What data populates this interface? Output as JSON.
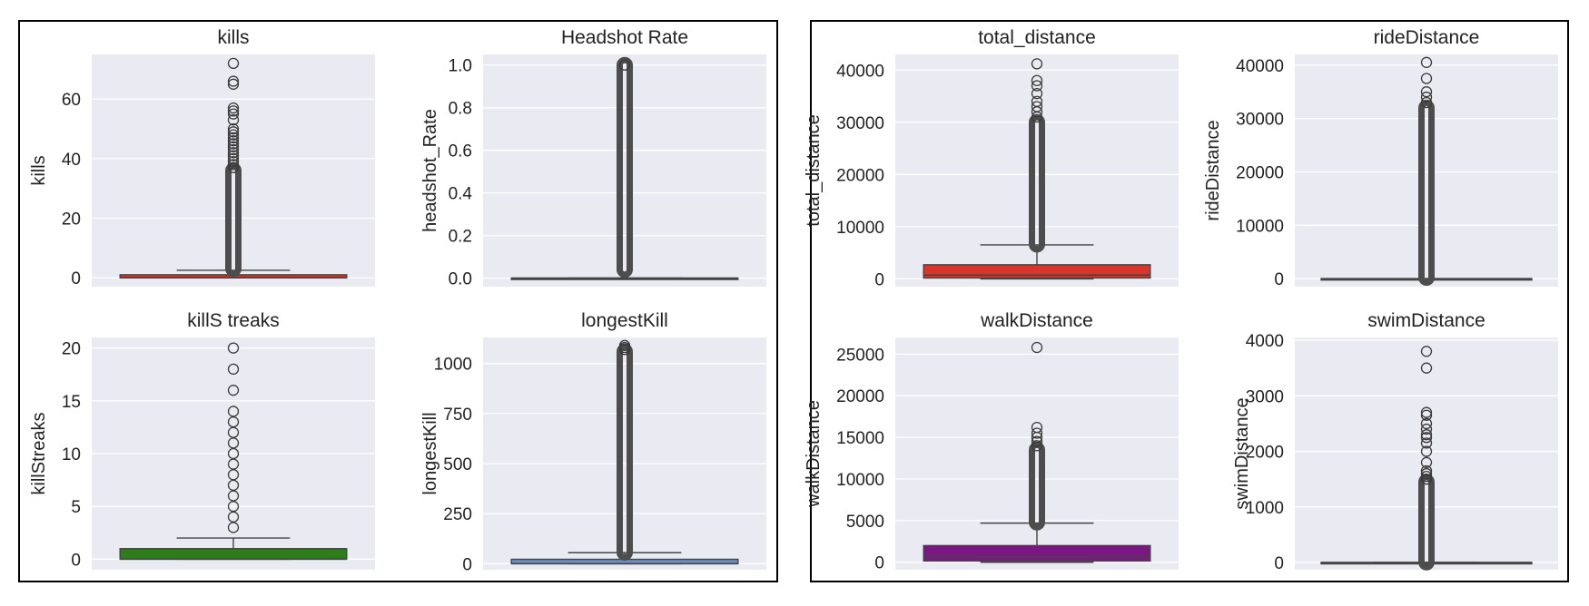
{
  "chart_data": [
    {
      "panel": "left",
      "type": "box",
      "title": "kills",
      "ylabel": "kills",
      "color": "#e0301e",
      "ylim": [
        -3,
        75
      ],
      "yticks": [
        0,
        20,
        40,
        60
      ],
      "box": {
        "q1": 0,
        "median": 0,
        "q3": 1,
        "whisker_low": 0,
        "whisker_high": 2.5
      },
      "outlier_range": [
        3,
        36
      ],
      "outliers": [
        37,
        38,
        39,
        40,
        41,
        42,
        43,
        44,
        45,
        46,
        47,
        48,
        49,
        50,
        53,
        55,
        56,
        57,
        65,
        66,
        72
      ]
    },
    {
      "panel": "left",
      "type": "box",
      "title": "Headshot Rate",
      "ylabel": "headshot_Rate",
      "color": "#4a4a4a",
      "ylim": [
        -0.04,
        1.05
      ],
      "yticks": [
        0.0,
        0.2,
        0.4,
        0.6,
        0.8,
        1.0
      ],
      "box": {
        "q1": 0,
        "median": 0,
        "q3": 0,
        "whisker_low": 0,
        "whisker_high": 0
      },
      "outlier_range": [
        0.04,
        1.0
      ],
      "outliers": [
        1.0
      ]
    },
    {
      "panel": "left",
      "type": "box",
      "title": "killS treaks",
      "ylabel": "killStreaks",
      "color": "#2e7d1a",
      "ylim": [
        -1,
        21
      ],
      "yticks": [
        0,
        5,
        10,
        15,
        20
      ],
      "box": {
        "q1": 0,
        "median": 0,
        "q3": 1,
        "whisker_low": 0,
        "whisker_high": 2
      },
      "outlier_range": null,
      "outliers": [
        3,
        4,
        5,
        6,
        7,
        8,
        9,
        10,
        11,
        12,
        13,
        14,
        16,
        18,
        20
      ]
    },
    {
      "panel": "left",
      "type": "box",
      "title": "longestKill",
      "ylabel": "longestKill",
      "color": "#6c8ebf",
      "ylim": [
        -30,
        1130
      ],
      "yticks": [
        0,
        250,
        500,
        750,
        1000
      ],
      "box": {
        "q1": 0,
        "median": 0,
        "q3": 22,
        "whisker_low": 0,
        "whisker_high": 55
      },
      "outlier_range": [
        56,
        1060
      ],
      "outliers": [
        1070,
        1080,
        1090
      ]
    },
    {
      "panel": "right",
      "type": "box",
      "title": "total_distance",
      "ylabel": "total_distance",
      "color": "#d9352a",
      "ylim": [
        -1500,
        43000
      ],
      "yticks": [
        0,
        10000,
        20000,
        30000,
        40000
      ],
      "box": {
        "q1": 150,
        "median": 700,
        "q3": 2700,
        "whisker_low": 0,
        "whisker_high": 6500
      },
      "outlier_range": [
        6600,
        30000
      ],
      "outliers": [
        31000,
        32000,
        33000,
        34000,
        35500,
        37000,
        38000,
        41200
      ]
    },
    {
      "panel": "right",
      "type": "box",
      "title": "rideDistance",
      "ylabel": "rideDistance",
      "color": "#4a4a4a",
      "ylim": [
        -1500,
        42000
      ],
      "yticks": [
        0,
        10000,
        20000,
        30000,
        40000
      ],
      "box": {
        "q1": 0,
        "median": 0,
        "q3": 0,
        "whisker_low": 0,
        "whisker_high": 0
      },
      "outlier_range": [
        200,
        32000
      ],
      "outliers": [
        33000,
        34000,
        35000,
        37500,
        40500
      ]
    },
    {
      "panel": "right",
      "type": "box",
      "title": "walkDistance",
      "ylabel": "walkDistance",
      "color": "#7a1782",
      "ylim": [
        -900,
        27000
      ],
      "yticks": [
        0,
        5000,
        10000,
        15000,
        20000,
        25000
      ],
      "box": {
        "q1": 150,
        "median": 600,
        "q3": 2000,
        "whisker_low": 0,
        "whisker_high": 4700
      },
      "outlier_range": [
        4800,
        13500
      ],
      "outliers": [
        14000,
        14500,
        15000,
        15500,
        16200,
        25800
      ]
    },
    {
      "panel": "right",
      "type": "box",
      "title": "swimDistance",
      "ylabel": "swimDistance",
      "color": "#4a4a4a",
      "ylim": [
        -130,
        4050
      ],
      "yticks": [
        0,
        1000,
        2000,
        3000,
        4000
      ],
      "box": {
        "q1": 0,
        "median": 0,
        "q3": 0,
        "whisker_low": 0,
        "whisker_high": 0
      },
      "outlier_range": [
        5,
        1450
      ],
      "outliers": [
        1500,
        1550,
        1600,
        1650,
        1800,
        2000,
        2150,
        2250,
        2300,
        2400,
        2500,
        2650,
        2700,
        3500,
        3800
      ]
    }
  ]
}
